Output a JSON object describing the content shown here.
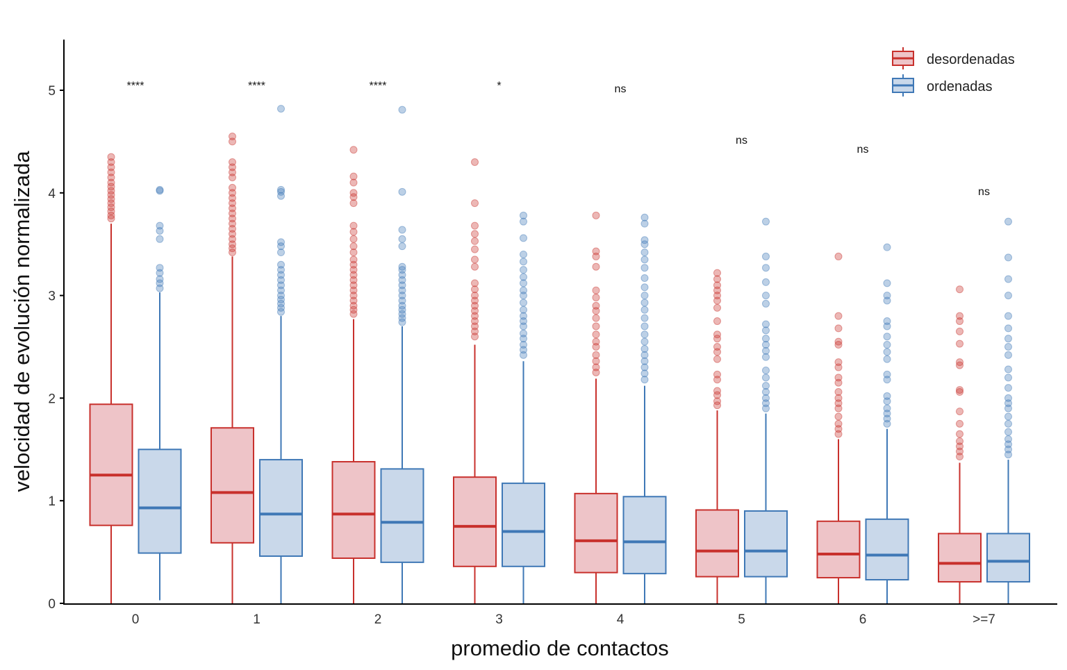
{
  "chart_data": {
    "type": "boxplot",
    "title": "",
    "xlabel": "promedio de contactos",
    "ylabel": "velocidad de evolución normalizada",
    "ylim": [
      0,
      5.5
    ],
    "yticks": [
      0,
      1,
      2,
      3,
      4,
      5
    ],
    "grid": false,
    "legend": {
      "placement": "top-right",
      "entries": [
        {
          "name": "desordenadas",
          "stroke": "#C8302C",
          "fill": "#EEC4C8"
        },
        {
          "name": "ordenadas",
          "stroke": "#3F78B6",
          "fill": "#C9D8EA"
        }
      ]
    },
    "categories": [
      "0",
      "1",
      "2",
      "3",
      "4",
      "5",
      "6",
      ">=7"
    ],
    "significance": [
      "****",
      "****",
      "****",
      "*",
      "ns",
      "ns",
      "ns",
      "ns"
    ],
    "significance_y": [
      5.05,
      5.05,
      5.05,
      5.05,
      5.02,
      4.52,
      4.43,
      4.02
    ],
    "series": [
      {
        "name": "desordenadas",
        "boxes": [
          {
            "min": 0.0,
            "q1": 0.76,
            "median": 1.25,
            "q3": 1.94,
            "max": 3.7,
            "outliers": [
              3.75,
              3.78,
              3.82,
              3.86,
              3.9,
              3.94,
              3.98,
              4.02,
              4.06,
              4.1,
              4.15,
              4.2,
              4.25,
              4.3,
              4.35
            ]
          },
          {
            "min": 0.0,
            "q1": 0.59,
            "median": 1.08,
            "q3": 1.71,
            "max": 3.38,
            "outliers": [
              3.42,
              3.46,
              3.5,
              3.55,
              3.6,
              3.65,
              3.7,
              3.75,
              3.8,
              3.85,
              3.9,
              3.95,
              4.0,
              4.05,
              4.15,
              4.2,
              4.25,
              4.3,
              4.5,
              4.55
            ]
          },
          {
            "min": 0.0,
            "q1": 0.44,
            "median": 0.87,
            "q3": 1.38,
            "max": 2.77,
            "outliers": [
              2.82,
              2.86,
              2.9,
              2.95,
              3.0,
              3.05,
              3.1,
              3.15,
              3.2,
              3.25,
              3.3,
              3.35,
              3.42,
              3.48,
              3.55,
              3.62,
              3.68,
              3.9,
              3.96,
              4.0,
              4.1,
              4.16,
              4.42
            ]
          },
          {
            "min": 0.0,
            "q1": 0.36,
            "median": 0.75,
            "q3": 1.23,
            "max": 2.52,
            "outliers": [
              2.6,
              2.65,
              2.7,
              2.75,
              2.8,
              2.85,
              2.9,
              2.95,
              3.0,
              3.06,
              3.12,
              3.28,
              3.35,
              3.45,
              3.53,
              3.6,
              3.68,
              3.9,
              4.3
            ]
          },
          {
            "min": 0.0,
            "q1": 0.3,
            "median": 0.61,
            "q3": 1.07,
            "max": 2.19,
            "outliers": [
              2.25,
              2.3,
              2.36,
              2.42,
              2.5,
              2.55,
              2.62,
              2.7,
              2.78,
              2.85,
              2.9,
              2.98,
              3.05,
              3.28,
              3.38,
              3.43,
              3.78
            ]
          },
          {
            "min": 0.0,
            "q1": 0.26,
            "median": 0.51,
            "q3": 0.91,
            "max": 1.88,
            "outliers": [
              1.93,
              1.97,
              2.03,
              2.07,
              2.18,
              2.23,
              2.38,
              2.45,
              2.5,
              2.58,
              2.62,
              2.75,
              2.88,
              2.95,
              3.0,
              3.05,
              3.1,
              3.16,
              3.22
            ]
          },
          {
            "min": 0.0,
            "q1": 0.25,
            "median": 0.48,
            "q3": 0.8,
            "max": 1.6,
            "outliers": [
              1.65,
              1.7,
              1.75,
              1.82,
              1.9,
              1.95,
              2.0,
              2.06,
              2.15,
              2.2,
              2.3,
              2.35,
              2.52,
              2.55,
              2.68,
              2.8,
              3.38
            ]
          },
          {
            "min": 0.0,
            "q1": 0.21,
            "median": 0.39,
            "q3": 0.68,
            "max": 1.37,
            "outliers": [
              1.43,
              1.48,
              1.53,
              1.58,
              1.65,
              1.75,
              1.87,
              2.06,
              2.08,
              2.32,
              2.35,
              2.53,
              2.65,
              2.75,
              2.8,
              3.06
            ]
          }
        ]
      },
      {
        "name": "ordenadas",
        "boxes": [
          {
            "min": 0.03,
            "q1": 0.49,
            "median": 0.93,
            "q3": 1.5,
            "max": 3.03,
            "outliers": [
              3.07,
              3.12,
              3.16,
              3.22,
              3.27,
              3.55,
              3.63,
              3.68,
              4.02,
              4.03
            ]
          },
          {
            "min": 0.0,
            "q1": 0.46,
            "median": 0.87,
            "q3": 1.4,
            "max": 2.8,
            "outliers": [
              2.84,
              2.88,
              2.92,
              2.96,
              3.0,
              3.05,
              3.1,
              3.15,
              3.2,
              3.25,
              3.3,
              3.42,
              3.48,
              3.52,
              3.97,
              4.01,
              4.03,
              4.82
            ]
          },
          {
            "min": 0.0,
            "q1": 0.4,
            "median": 0.79,
            "q3": 1.31,
            "max": 2.7,
            "outliers": [
              2.74,
              2.78,
              2.82,
              2.86,
              2.9,
              2.95,
              3.0,
              3.05,
              3.1,
              3.15,
              3.2,
              3.25,
              3.28,
              3.48,
              3.55,
              3.64,
              4.01,
              4.81
            ]
          },
          {
            "min": 0.0,
            "q1": 0.36,
            "median": 0.7,
            "q3": 1.17,
            "max": 2.36,
            "outliers": [
              2.42,
              2.47,
              2.52,
              2.58,
              2.63,
              2.7,
              2.75,
              2.8,
              2.86,
              2.93,
              3.0,
              3.05,
              3.12,
              3.18,
              3.25,
              3.33,
              3.4,
              3.56,
              3.72,
              3.78
            ]
          },
          {
            "min": 0.0,
            "q1": 0.29,
            "median": 0.6,
            "q3": 1.04,
            "max": 2.12,
            "outliers": [
              2.18,
              2.24,
              2.3,
              2.36,
              2.42,
              2.48,
              2.55,
              2.62,
              2.7,
              2.78,
              2.86,
              2.93,
              3.0,
              3.08,
              3.17,
              3.27,
              3.35,
              3.42,
              3.5,
              3.54,
              3.7,
              3.76
            ]
          },
          {
            "min": 0.0,
            "q1": 0.26,
            "median": 0.51,
            "q3": 0.9,
            "max": 1.85,
            "outliers": [
              1.9,
              1.95,
              2.0,
              2.06,
              2.12,
              2.2,
              2.27,
              2.4,
              2.46,
              2.52,
              2.58,
              2.66,
              2.72,
              2.92,
              3.0,
              3.13,
              3.27,
              3.38,
              3.72
            ]
          },
          {
            "min": 0.0,
            "q1": 0.23,
            "median": 0.47,
            "q3": 0.82,
            "max": 1.7,
            "outliers": [
              1.75,
              1.8,
              1.85,
              1.9,
              1.97,
              2.02,
              2.18,
              2.23,
              2.38,
              2.45,
              2.52,
              2.6,
              2.7,
              2.75,
              2.95,
              3.0,
              3.12,
              3.47
            ]
          },
          {
            "min": 0.0,
            "q1": 0.21,
            "median": 0.41,
            "q3": 0.68,
            "max": 1.4,
            "outliers": [
              1.45,
              1.5,
              1.55,
              1.6,
              1.67,
              1.75,
              1.82,
              1.9,
              1.95,
              2.0,
              2.1,
              2.2,
              2.28,
              2.42,
              2.5,
              2.58,
              2.68,
              2.8,
              3.0,
              3.16,
              3.37,
              3.72
            ]
          }
        ]
      }
    ]
  }
}
